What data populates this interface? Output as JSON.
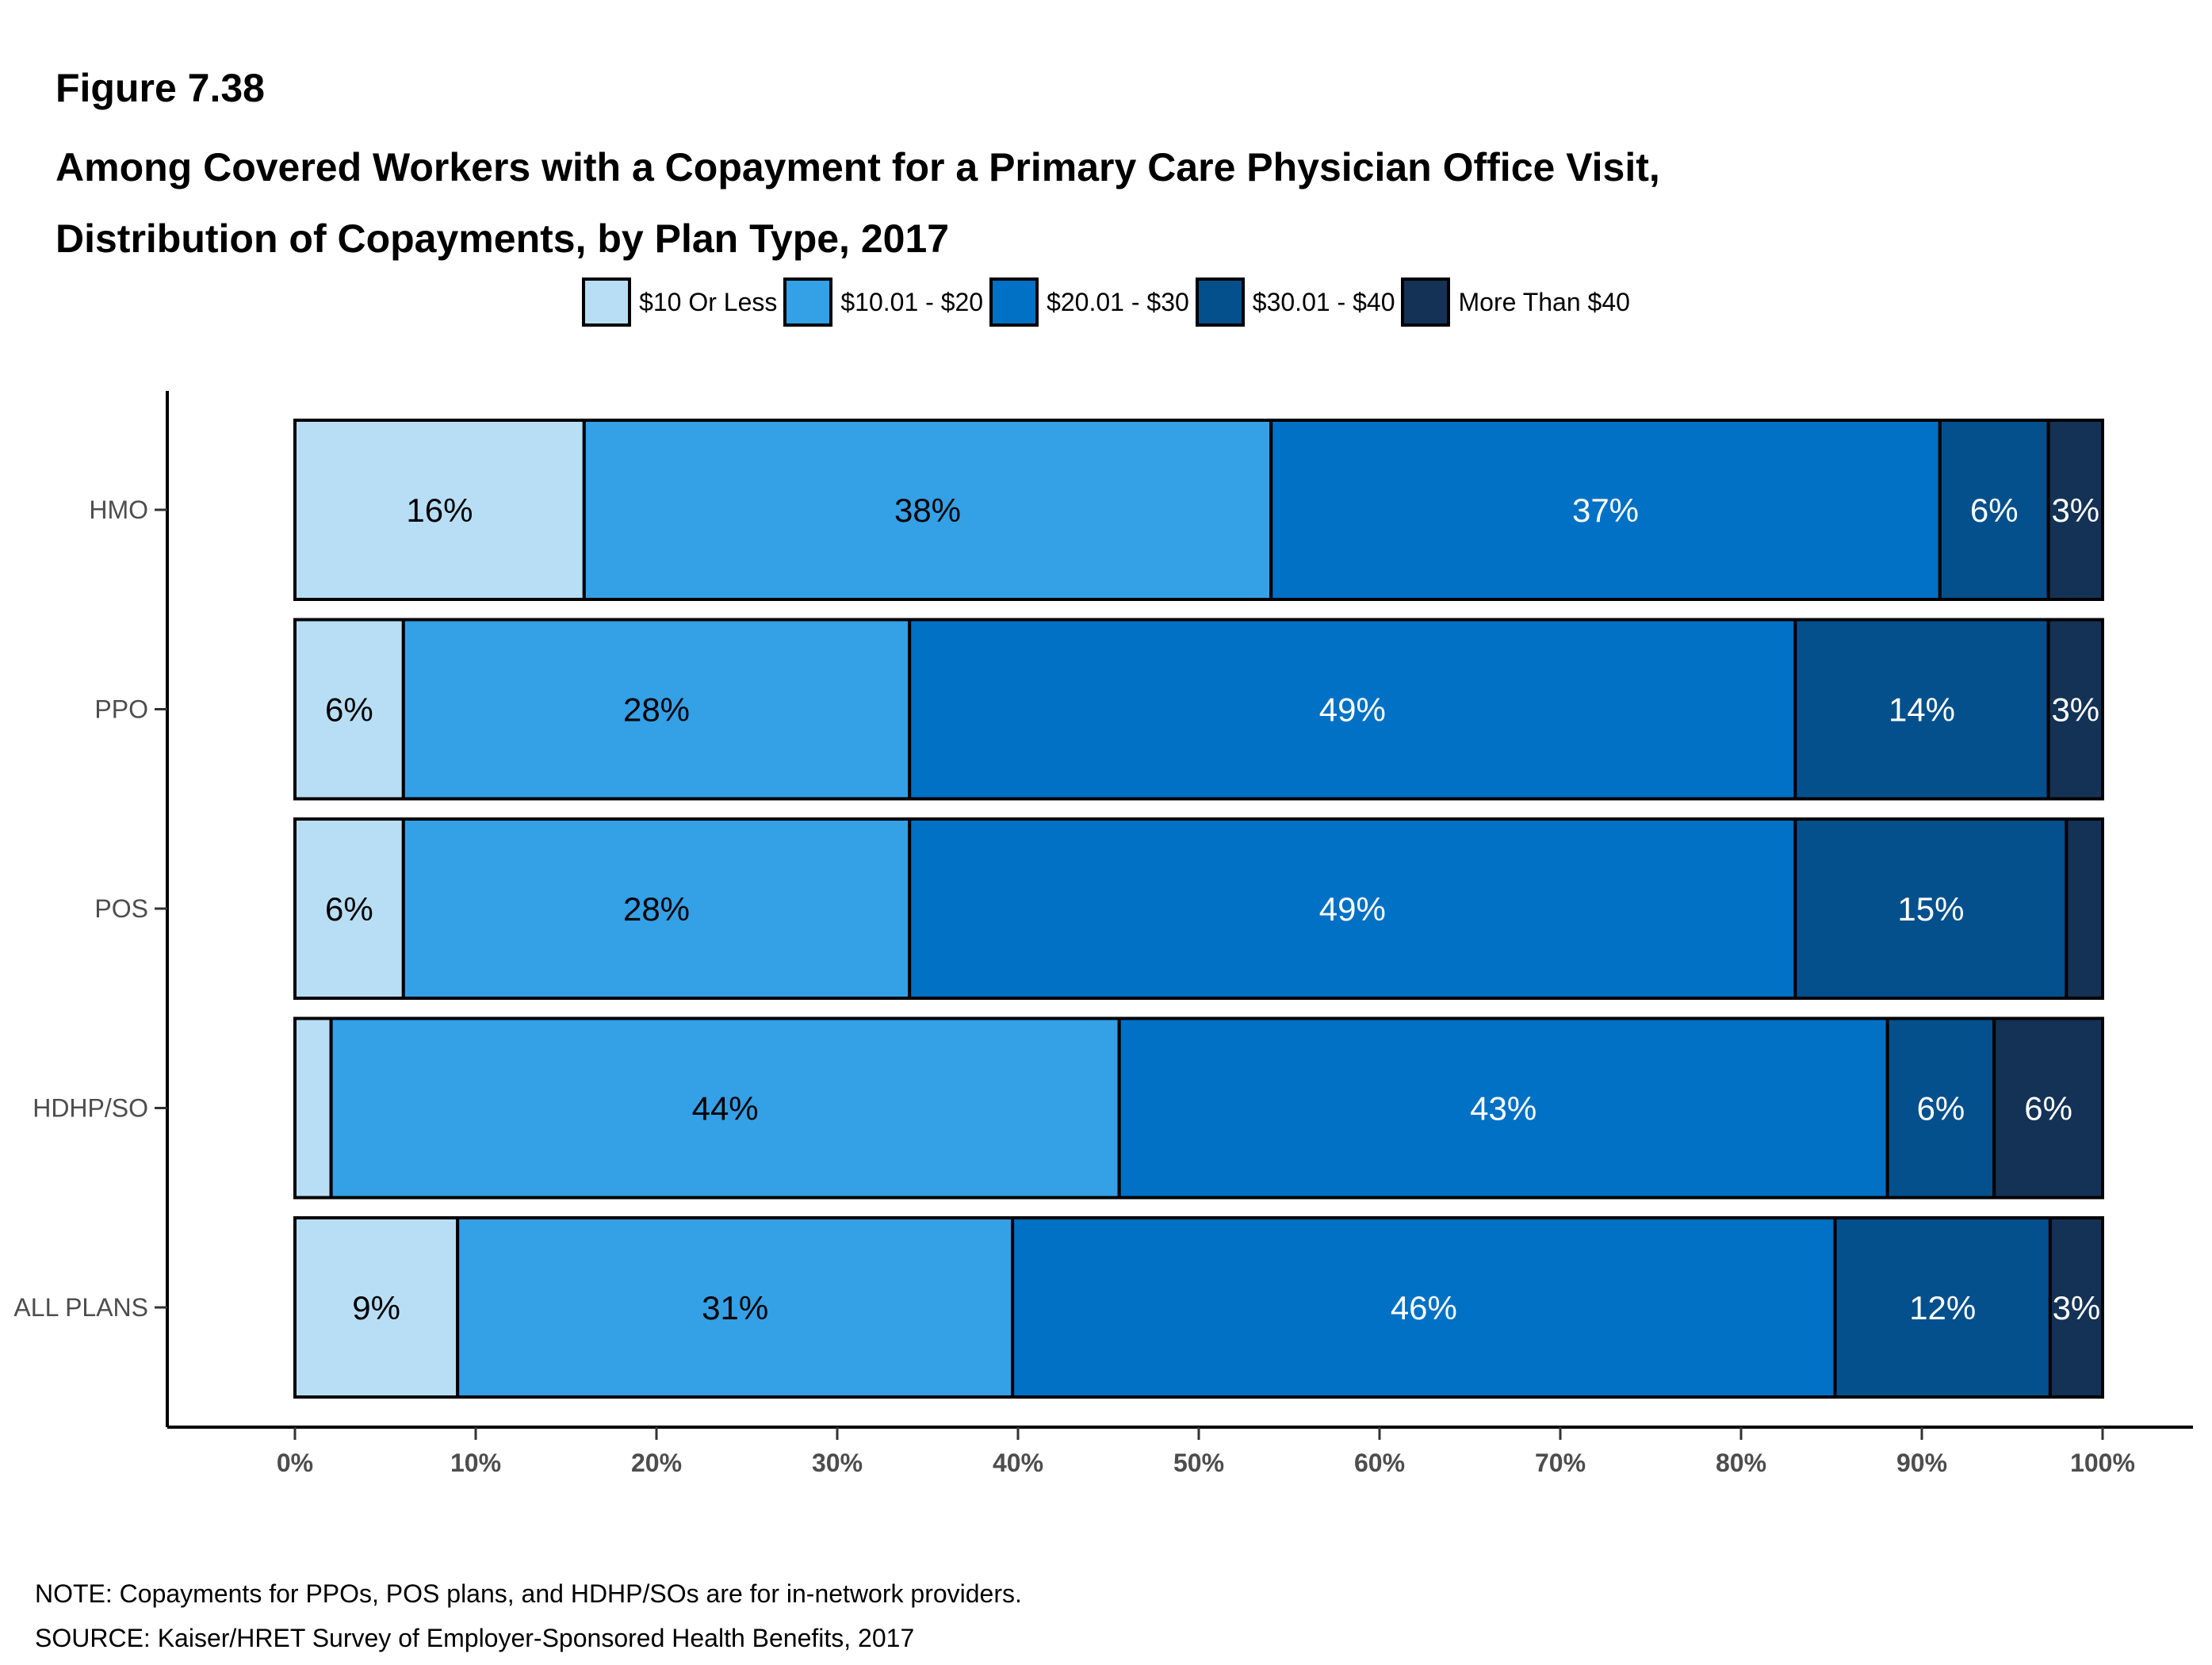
{
  "figure_label": "Figure 7.38",
  "title_line1": "Among Covered Workers with a Copayment for a Primary Care Physician Office Visit,",
  "title_line2": "Distribution of Copayments, by Plan Type, 2017",
  "note": "NOTE: Copayments for PPOs, POS plans, and HDHP/SOs are for in-network providers.",
  "source": "SOURCE: Kaiser/HRET Survey of Employer-Sponsored Health Benefits, 2017",
  "chart_data": {
    "type": "bar",
    "orientation": "horizontal",
    "stacked": true,
    "categories": [
      "HMO",
      "PPO",
      "POS",
      "HDHP/SO",
      "ALL PLANS"
    ],
    "xlim": [
      0,
      100
    ],
    "xticks": [
      "0%",
      "10%",
      "20%",
      "30%",
      "40%",
      "50%",
      "60%",
      "70%",
      "80%",
      "90%",
      "100%"
    ],
    "legend_position": "top",
    "grid": false,
    "series": [
      {
        "name": "$10 Or Less",
        "color": "#b8def5",
        "label_color": "#000000",
        "values": [
          16,
          6,
          6,
          2,
          9
        ],
        "labels": [
          "16%",
          "6%",
          "6%",
          "",
          "9%"
        ]
      },
      {
        "name": "$10.01 - $20",
        "color": "#34a0e6",
        "label_color": "#000000",
        "values": [
          38,
          28,
          28,
          43.6,
          30.7
        ],
        "labels": [
          "38%",
          "28%",
          "28%",
          "44%",
          "31%"
        ]
      },
      {
        "name": "$20.01 - $30",
        "color": "#0071c5",
        "label_color": "#ffffff",
        "values": [
          37,
          49,
          49,
          42.5,
          45.5
        ],
        "labels": [
          "37%",
          "49%",
          "49%",
          "43%",
          "46%"
        ]
      },
      {
        "name": "$30.01 - $40",
        "color": "#03508d",
        "label_color": "#ffffff",
        "values": [
          6,
          14,
          15,
          5.9,
          11.9
        ],
        "labels": [
          "6%",
          "14%",
          "15%",
          "6%",
          "12%"
        ]
      },
      {
        "name": "More Than $40",
        "color": "#133256",
        "label_color": "#ffffff",
        "values": [
          3,
          3,
          2,
          6,
          2.9
        ],
        "labels": [
          "3%",
          "3%",
          "",
          "6%",
          "3%"
        ]
      }
    ]
  }
}
